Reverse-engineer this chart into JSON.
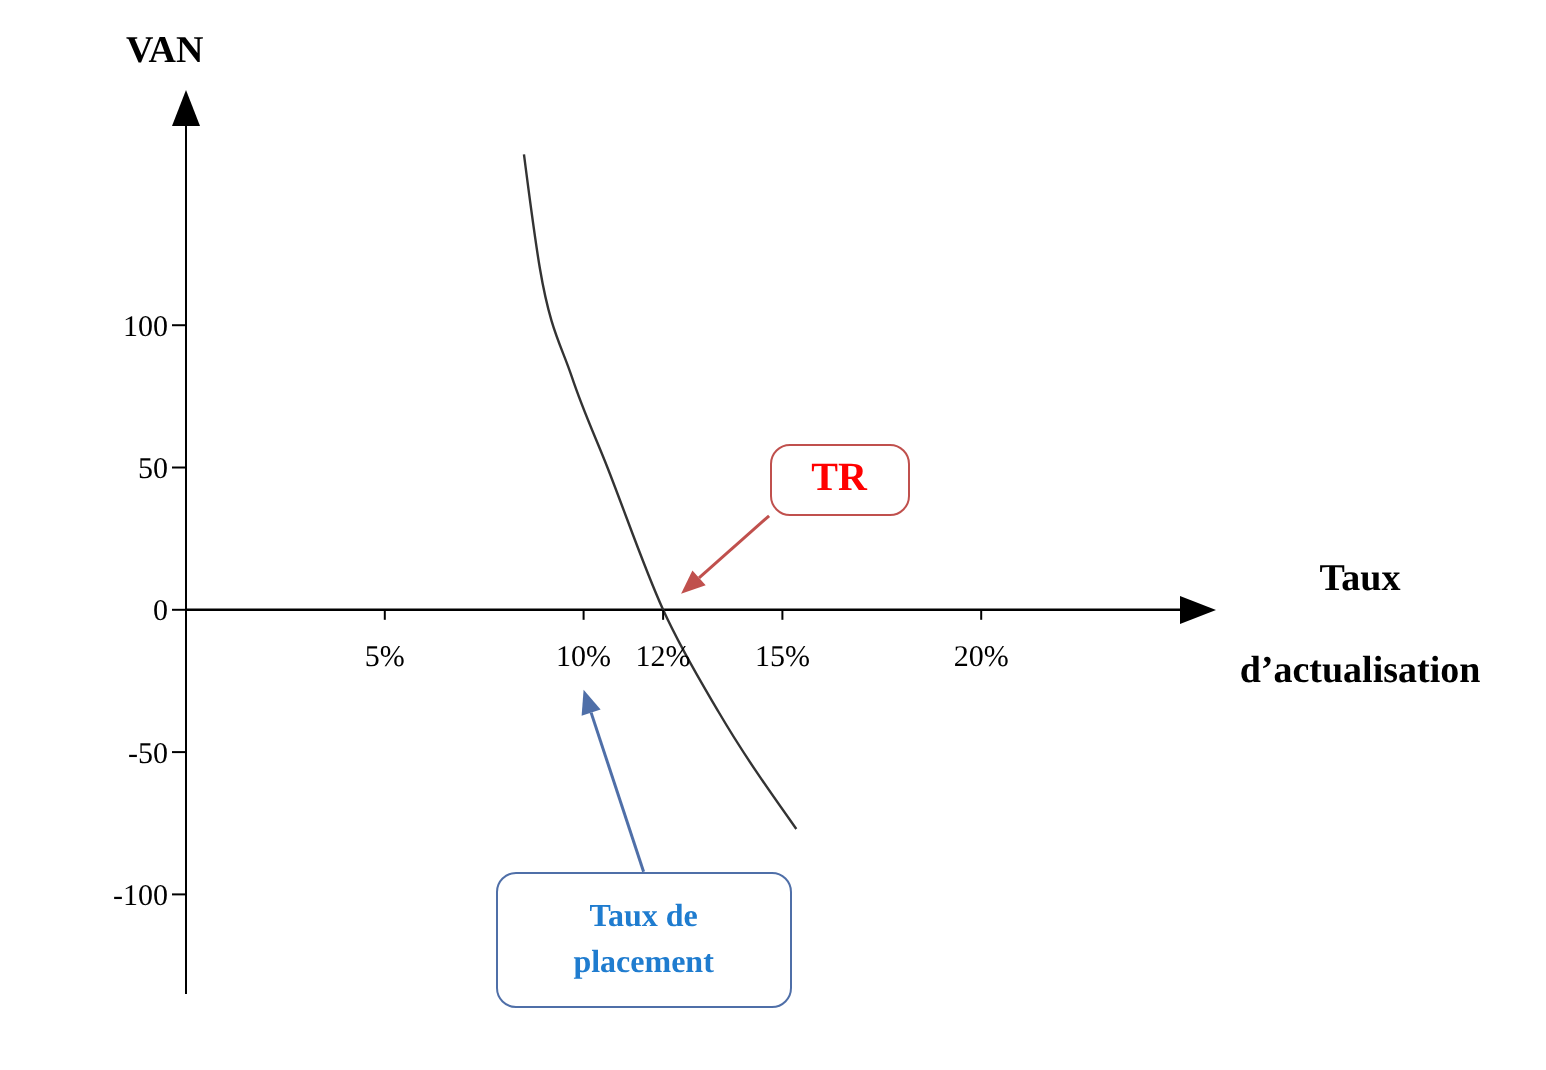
{
  "chart_data": {
    "type": "line",
    "xlabel": "Taux d’actualisation",
    "ylabel": "VAN",
    "x": [
      8.5,
      8.9,
      9.7,
      10.6,
      12,
      13.4,
      15.35
    ],
    "series": [
      {
        "color": "#333333",
        "values": [
          160,
          120,
          82,
          50,
          0,
          -36,
          -77
        ]
      }
    ],
    "xlim": [
      0,
      25
    ],
    "xticks": [
      {
        "value": 5,
        "label": "5%"
      },
      {
        "value": 10,
        "label": "10%"
      },
      {
        "value": 12,
        "label": "12%"
      },
      {
        "value": 15,
        "label": "15%"
      },
      {
        "value": 20,
        "label": "20%"
      }
    ],
    "ylim": [
      -135,
      170
    ],
    "yticks": [
      -100,
      -50,
      0,
      50,
      100
    ],
    "annotations": [
      "TR",
      "Taux de placement"
    ]
  }
}
